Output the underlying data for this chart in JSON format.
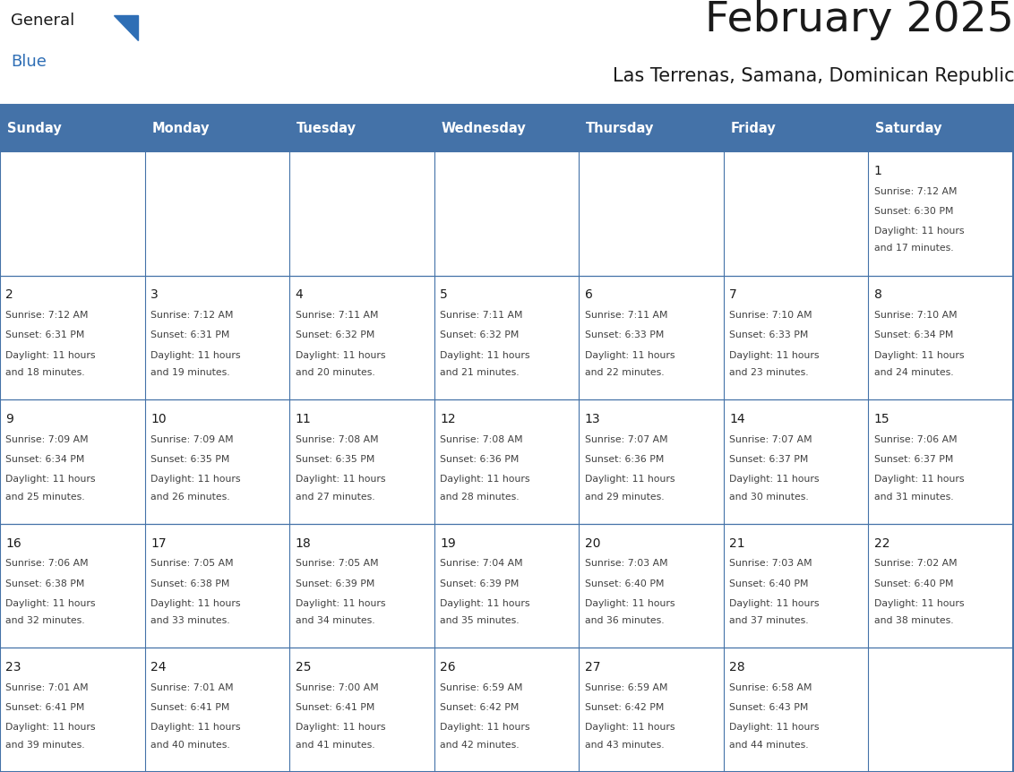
{
  "title": "February 2025",
  "subtitle": "Las Terrenas, Samana, Dominican Republic",
  "header_bg": "#4472A8",
  "header_text_color": "#FFFFFF",
  "cell_bg": "#FFFFFF",
  "border_color": "#4472A8",
  "row_line_color": "#4472A8",
  "title_color": "#1A1A1A",
  "subtitle_color": "#1A1A1A",
  "day_number_color": "#1A1A1A",
  "cell_text_color": "#404040",
  "days_of_week": [
    "Sunday",
    "Monday",
    "Tuesday",
    "Wednesday",
    "Thursday",
    "Friday",
    "Saturday"
  ],
  "logo_general_color": "#1A1A1A",
  "logo_blue_color": "#2E6EB5",
  "calendar_data": [
    [
      null,
      null,
      null,
      null,
      null,
      null,
      {
        "day": 1,
        "sunrise": "7:12 AM",
        "sunset": "6:30 PM",
        "daylight_line1": "Daylight: 11 hours",
        "daylight_line2": "and 17 minutes."
      }
    ],
    [
      {
        "day": 2,
        "sunrise": "7:12 AM",
        "sunset": "6:31 PM",
        "daylight_line1": "Daylight: 11 hours",
        "daylight_line2": "and 18 minutes."
      },
      {
        "day": 3,
        "sunrise": "7:12 AM",
        "sunset": "6:31 PM",
        "daylight_line1": "Daylight: 11 hours",
        "daylight_line2": "and 19 minutes."
      },
      {
        "day": 4,
        "sunrise": "7:11 AM",
        "sunset": "6:32 PM",
        "daylight_line1": "Daylight: 11 hours",
        "daylight_line2": "and 20 minutes."
      },
      {
        "day": 5,
        "sunrise": "7:11 AM",
        "sunset": "6:32 PM",
        "daylight_line1": "Daylight: 11 hours",
        "daylight_line2": "and 21 minutes."
      },
      {
        "day": 6,
        "sunrise": "7:11 AM",
        "sunset": "6:33 PM",
        "daylight_line1": "Daylight: 11 hours",
        "daylight_line2": "and 22 minutes."
      },
      {
        "day": 7,
        "sunrise": "7:10 AM",
        "sunset": "6:33 PM",
        "daylight_line1": "Daylight: 11 hours",
        "daylight_line2": "and 23 minutes."
      },
      {
        "day": 8,
        "sunrise": "7:10 AM",
        "sunset": "6:34 PM",
        "daylight_line1": "Daylight: 11 hours",
        "daylight_line2": "and 24 minutes."
      }
    ],
    [
      {
        "day": 9,
        "sunrise": "7:09 AM",
        "sunset": "6:34 PM",
        "daylight_line1": "Daylight: 11 hours",
        "daylight_line2": "and 25 minutes."
      },
      {
        "day": 10,
        "sunrise": "7:09 AM",
        "sunset": "6:35 PM",
        "daylight_line1": "Daylight: 11 hours",
        "daylight_line2": "and 26 minutes."
      },
      {
        "day": 11,
        "sunrise": "7:08 AM",
        "sunset": "6:35 PM",
        "daylight_line1": "Daylight: 11 hours",
        "daylight_line2": "and 27 minutes."
      },
      {
        "day": 12,
        "sunrise": "7:08 AM",
        "sunset": "6:36 PM",
        "daylight_line1": "Daylight: 11 hours",
        "daylight_line2": "and 28 minutes."
      },
      {
        "day": 13,
        "sunrise": "7:07 AM",
        "sunset": "6:36 PM",
        "daylight_line1": "Daylight: 11 hours",
        "daylight_line2": "and 29 minutes."
      },
      {
        "day": 14,
        "sunrise": "7:07 AM",
        "sunset": "6:37 PM",
        "daylight_line1": "Daylight: 11 hours",
        "daylight_line2": "and 30 minutes."
      },
      {
        "day": 15,
        "sunrise": "7:06 AM",
        "sunset": "6:37 PM",
        "daylight_line1": "Daylight: 11 hours",
        "daylight_line2": "and 31 minutes."
      }
    ],
    [
      {
        "day": 16,
        "sunrise": "7:06 AM",
        "sunset": "6:38 PM",
        "daylight_line1": "Daylight: 11 hours",
        "daylight_line2": "and 32 minutes."
      },
      {
        "day": 17,
        "sunrise": "7:05 AM",
        "sunset": "6:38 PM",
        "daylight_line1": "Daylight: 11 hours",
        "daylight_line2": "and 33 minutes."
      },
      {
        "day": 18,
        "sunrise": "7:05 AM",
        "sunset": "6:39 PM",
        "daylight_line1": "Daylight: 11 hours",
        "daylight_line2": "and 34 minutes."
      },
      {
        "day": 19,
        "sunrise": "7:04 AM",
        "sunset": "6:39 PM",
        "daylight_line1": "Daylight: 11 hours",
        "daylight_line2": "and 35 minutes."
      },
      {
        "day": 20,
        "sunrise": "7:03 AM",
        "sunset": "6:40 PM",
        "daylight_line1": "Daylight: 11 hours",
        "daylight_line2": "and 36 minutes."
      },
      {
        "day": 21,
        "sunrise": "7:03 AM",
        "sunset": "6:40 PM",
        "daylight_line1": "Daylight: 11 hours",
        "daylight_line2": "and 37 minutes."
      },
      {
        "day": 22,
        "sunrise": "7:02 AM",
        "sunset": "6:40 PM",
        "daylight_line1": "Daylight: 11 hours",
        "daylight_line2": "and 38 minutes."
      }
    ],
    [
      {
        "day": 23,
        "sunrise": "7:01 AM",
        "sunset": "6:41 PM",
        "daylight_line1": "Daylight: 11 hours",
        "daylight_line2": "and 39 minutes."
      },
      {
        "day": 24,
        "sunrise": "7:01 AM",
        "sunset": "6:41 PM",
        "daylight_line1": "Daylight: 11 hours",
        "daylight_line2": "and 40 minutes."
      },
      {
        "day": 25,
        "sunrise": "7:00 AM",
        "sunset": "6:41 PM",
        "daylight_line1": "Daylight: 11 hours",
        "daylight_line2": "and 41 minutes."
      },
      {
        "day": 26,
        "sunrise": "6:59 AM",
        "sunset": "6:42 PM",
        "daylight_line1": "Daylight: 11 hours",
        "daylight_line2": "and 42 minutes."
      },
      {
        "day": 27,
        "sunrise": "6:59 AM",
        "sunset": "6:42 PM",
        "daylight_line1": "Daylight: 11 hours",
        "daylight_line2": "and 43 minutes."
      },
      {
        "day": 28,
        "sunrise": "6:58 AM",
        "sunset": "6:43 PM",
        "daylight_line1": "Daylight: 11 hours",
        "daylight_line2": "and 44 minutes."
      },
      null
    ]
  ]
}
